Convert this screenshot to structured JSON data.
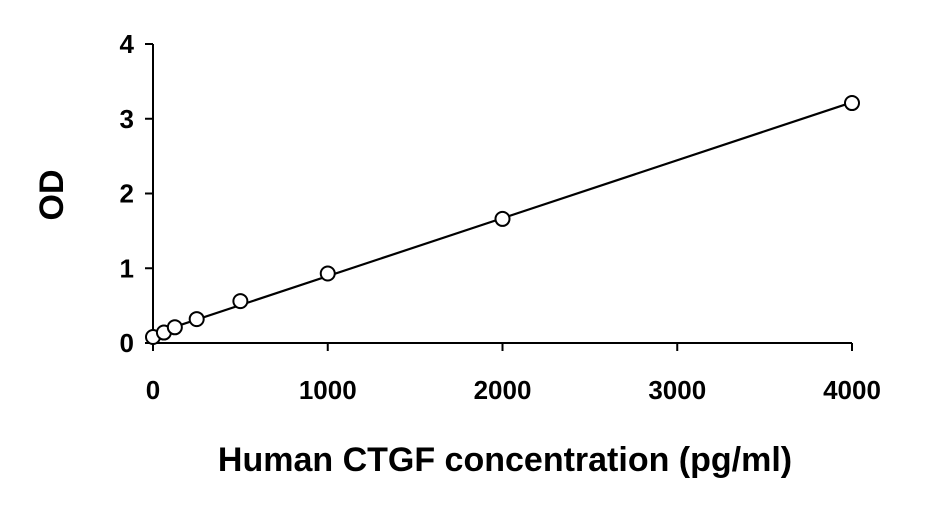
{
  "chart_data": {
    "type": "scatter",
    "title": "",
    "xlabel": "Human CTGF concentration (pg/ml)",
    "ylabel": "OD",
    "xlim": [
      0,
      4000
    ],
    "ylim": [
      0,
      4
    ],
    "xticks": [
      0,
      1000,
      2000,
      3000,
      4000
    ],
    "yticks": [
      0,
      1,
      2,
      3,
      4
    ],
    "xtick_labels": [
      "0",
      "1000",
      "2000",
      "3000",
      "4000"
    ],
    "ytick_labels": [
      "0",
      "1",
      "2",
      "3",
      "4"
    ],
    "grid": false,
    "legend": "none",
    "series": [
      {
        "marker": "open-circle",
        "trendline": "linear",
        "x": [
          0,
          62.5,
          125,
          250,
          500,
          1000,
          2000,
          4000
        ],
        "y": [
          0.08,
          0.14,
          0.21,
          0.32,
          0.56,
          0.93,
          1.66,
          3.21
        ]
      }
    ],
    "colors": {
      "axis": "#000000",
      "marker_stroke": "#000000",
      "marker_fill": "#ffffff",
      "line": "#000000"
    }
  }
}
